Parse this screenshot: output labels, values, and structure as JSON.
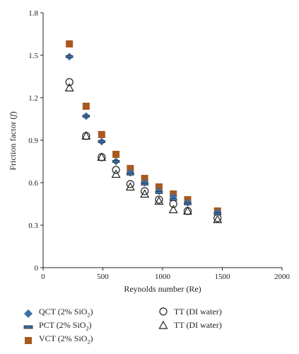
{
  "chart_data": {
    "type": "scatter",
    "xlabel": "Reynolds number (Re)",
    "ylabel": "Friction factor (f)",
    "xlim": [
      0,
      2000
    ],
    "ylim": [
      0,
      1.8
    ],
    "x_ticks": [
      0,
      500,
      1000,
      1500,
      2000
    ],
    "y_ticks": [
      0,
      0.3,
      0.6,
      0.9,
      1.2,
      1.5,
      1.8
    ],
    "grid": false,
    "series": [
      {
        "name": "QCT (2% SiO2)",
        "marker": "diamond",
        "color": "#3d6ea5",
        "x": [
          220,
          360,
          490,
          610,
          730,
          850,
          970,
          1090,
          1210,
          1460
        ],
        "y": [
          1.49,
          1.07,
          0.89,
          0.75,
          0.67,
          0.6,
          0.54,
          0.5,
          0.46,
          0.39
        ]
      },
      {
        "name": "PCT (2% SiO2)",
        "marker": "dash",
        "color": "#3d6ea5",
        "x": [
          220,
          360,
          490,
          610,
          730,
          850,
          970,
          1090,
          1210,
          1460
        ],
        "y": [
          1.49,
          1.07,
          0.89,
          0.75,
          0.66,
          0.59,
          0.53,
          0.48,
          0.45,
          0.38
        ]
      },
      {
        "name": "VCT (2% SiO2)",
        "marker": "square",
        "color": "#a9581f",
        "x": [
          220,
          360,
          490,
          610,
          730,
          850,
          970,
          1090,
          1210,
          1460
        ],
        "y": [
          1.58,
          1.14,
          0.94,
          0.8,
          0.7,
          0.63,
          0.57,
          0.52,
          0.48,
          0.4
        ]
      },
      {
        "name": "TT (DI water)",
        "marker": "circle",
        "color": "#222222",
        "x": [
          220,
          360,
          490,
          610,
          730,
          850,
          970,
          1090,
          1210,
          1460
        ],
        "y": [
          1.31,
          0.93,
          0.78,
          0.69,
          0.59,
          0.54,
          0.48,
          0.45,
          0.4,
          0.35
        ]
      },
      {
        "name": "TT (DI water)",
        "marker": "triangle",
        "color": "#222222",
        "x": [
          220,
          360,
          490,
          610,
          730,
          850,
          970,
          1090,
          1210,
          1460
        ],
        "y": [
          1.27,
          0.93,
          0.78,
          0.66,
          0.57,
          0.52,
          0.47,
          0.41,
          0.4,
          0.34
        ]
      }
    ]
  },
  "legend": {
    "qct": "QCT (2% SiO",
    "pct": "PCT (2% SiO",
    "vct": "VCT (2% SiO",
    "tt1": "TT (DI water)",
    "tt2": "TT (DI water)",
    "sub2": "2"
  }
}
